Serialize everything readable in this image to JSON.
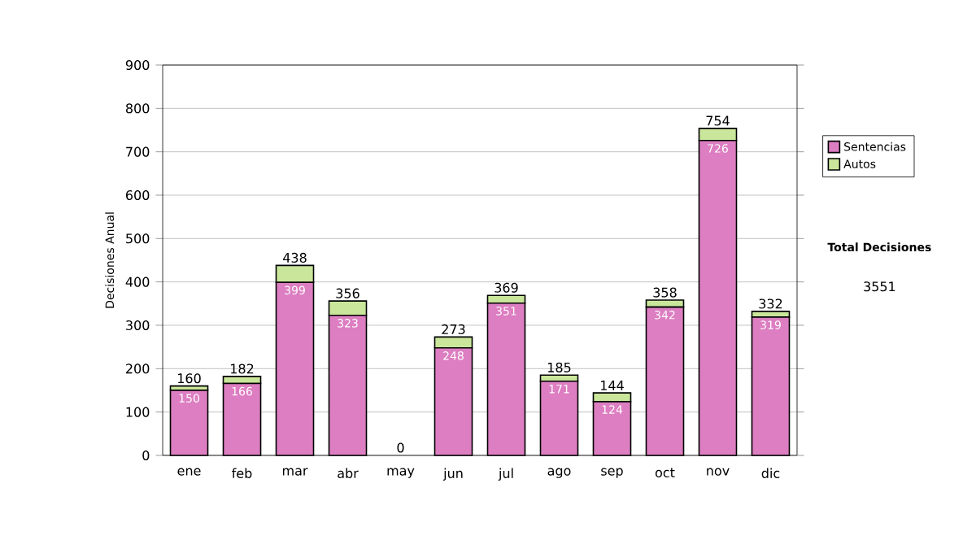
{
  "chart_data": {
    "type": "bar",
    "stacked": true,
    "ylabel": "Decisiones Anual",
    "categories": [
      "ene",
      "feb",
      "mar",
      "abr",
      "may",
      "jun",
      "jul",
      "ago",
      "sep",
      "oct",
      "nov",
      "dic"
    ],
    "series": [
      {
        "name": "Sentencias",
        "color": "#dc7ec1",
        "values": [
          150,
          166,
          399,
          323,
          0,
          248,
          351,
          171,
          124,
          342,
          726,
          319
        ],
        "value_labels": [
          "150",
          "166",
          "399",
          "323",
          null,
          "248",
          "351",
          "171",
          "124",
          "342",
          "726",
          "319"
        ]
      },
      {
        "name": "Autos",
        "color": "#c9e69b",
        "values": [
          10,
          16,
          39,
          33,
          0,
          25,
          18,
          14,
          20,
          16,
          28,
          13
        ]
      }
    ],
    "totals": [
      "160",
      "182",
      "438",
      "356",
      "0",
      "273",
      "369",
      "185",
      "144",
      "358",
      "754",
      "332"
    ],
    "ylim": [
      0,
      900
    ],
    "yticks": [
      0,
      100,
      200,
      300,
      400,
      500,
      600,
      700,
      800,
      900
    ],
    "grid": "y",
    "legend": "right",
    "annotations": [
      "Total Decisiones",
      "3551"
    ]
  }
}
